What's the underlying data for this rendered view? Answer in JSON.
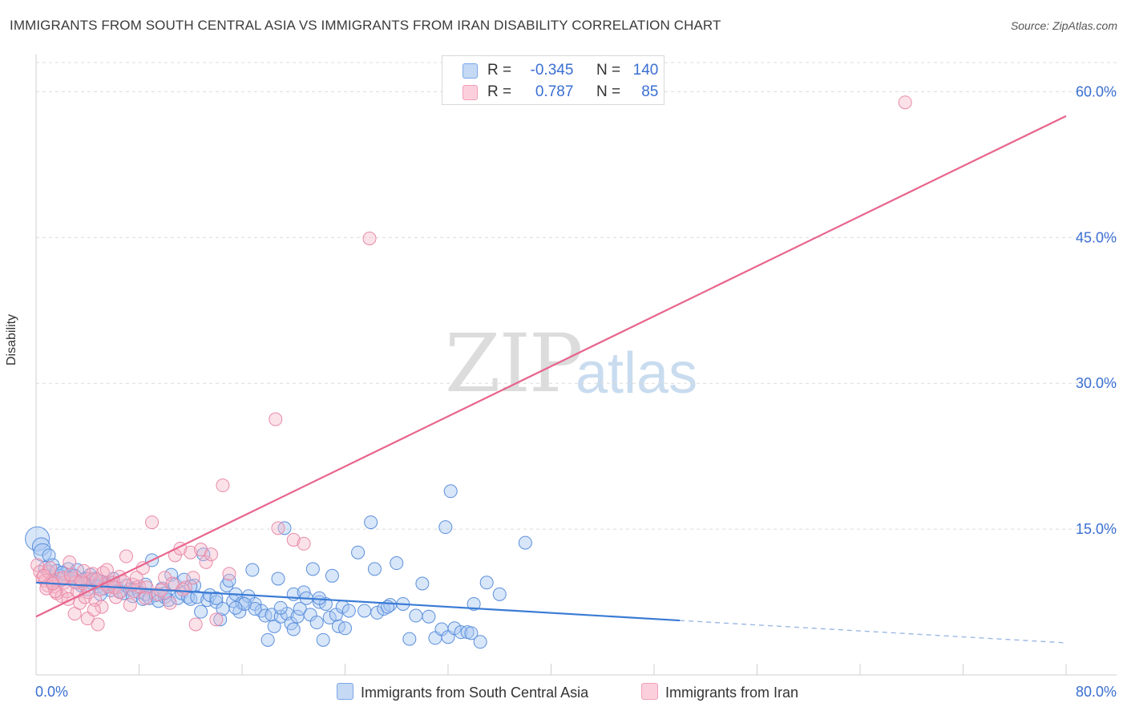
{
  "header": {
    "title": "IMMIGRANTS FROM SOUTH CENTRAL ASIA VS IMMIGRANTS FROM IRAN DISABILITY CORRELATION CHART",
    "source": "Source: ZipAtlas.com"
  },
  "watermark": {
    "zip": "ZIP",
    "atlas": "atlas"
  },
  "stats": {
    "rows": [
      {
        "r_label": "R =",
        "r_value": "-0.345",
        "n_label": "N =",
        "n_value": "140",
        "color": "#7aa7e8"
      },
      {
        "r_label": "R =",
        "r_value": "0.787",
        "n_label": "N =",
        "n_value": "85",
        "color": "#f0a0b8"
      }
    ]
  },
  "legend": {
    "items": [
      {
        "label": "Immigrants from South Central Asia",
        "color": "#7aa7e8"
      },
      {
        "label": "Immigrants from Iran",
        "color": "#f0a0b8"
      }
    ]
  },
  "colors": {
    "blue": "#3a7bd5",
    "blue_fill": "#a9c8f2",
    "pink": "#e8648c",
    "pink_fill": "#f6b7c9",
    "tick_label": "#3a6fd2"
  },
  "chart_data": {
    "type": "scatter",
    "title": "IMMIGRANTS FROM SOUTH CENTRAL ASIA VS IMMIGRANTS FROM IRAN DISABILITY CORRELATION CHART",
    "xlabel": "",
    "ylabel": "Disability",
    "xlim": [
      0,
      80
    ],
    "ylim": [
      0,
      63
    ],
    "x_tick_labels": [
      "0.0%",
      "80.0%"
    ],
    "y_ticks": [
      15,
      30,
      45,
      60
    ],
    "y_tick_labels": [
      "15.0%",
      "30.0%",
      "45.0%",
      "60.0%"
    ],
    "series": [
      {
        "name": "Immigrants from South Central Asia",
        "color": "#3a7bd5",
        "trend": {
          "x0": 0,
          "y0": 9.5,
          "x1": 50,
          "y1": 5.6,
          "dash_x1": 80,
          "dash_y1": 3.3
        },
        "points": [
          [
            0.1,
            14.0
          ],
          [
            0.4,
            13.2
          ],
          [
            0.5,
            12.6
          ],
          [
            0.7,
            11.0
          ],
          [
            1.0,
            12.3
          ],
          [
            1.3,
            11.3
          ],
          [
            1.6,
            10.7
          ],
          [
            1.9,
            10.2
          ],
          [
            2.0,
            9.8
          ],
          [
            2.2,
            10.4
          ],
          [
            2.5,
            10.9
          ],
          [
            2.8,
            10.1
          ],
          [
            3.0,
            9.6
          ],
          [
            3.2,
            10.8
          ],
          [
            3.5,
            9.2
          ],
          [
            3.8,
            9.9
          ],
          [
            4.0,
            8.8
          ],
          [
            4.2,
            10.3
          ],
          [
            4.4,
            9.4
          ],
          [
            4.6,
            9.9
          ],
          [
            4.8,
            9.1
          ],
          [
            5.0,
            9.6
          ],
          [
            5.3,
            8.9
          ],
          [
            5.5,
            9.3
          ],
          [
            5.8,
            8.7
          ],
          [
            6.0,
            9.5
          ],
          [
            6.3,
            9.0
          ],
          [
            6.5,
            8.6
          ],
          [
            6.8,
            8.4
          ],
          [
            7.0,
            9.2
          ],
          [
            7.3,
            8.8
          ],
          [
            7.5,
            8.1
          ],
          [
            7.8,
            9.0
          ],
          [
            8.0,
            8.5
          ],
          [
            8.3,
            7.8
          ],
          [
            8.5,
            8.3
          ],
          [
            8.8,
            7.9
          ],
          [
            9.0,
            11.8
          ],
          [
            9.3,
            8.2
          ],
          [
            9.5,
            7.6
          ],
          [
            9.8,
            8.9
          ],
          [
            10.0,
            8.0
          ],
          [
            10.3,
            7.7
          ],
          [
            10.5,
            10.3
          ],
          [
            10.8,
            9.3
          ],
          [
            11.0,
            7.9
          ],
          [
            11.3,
            8.4
          ],
          [
            11.5,
            9.8
          ],
          [
            11.8,
            8.0
          ],
          [
            12.0,
            7.8
          ],
          [
            12.3,
            9.2
          ],
          [
            12.5,
            8.0
          ],
          [
            12.8,
            6.5
          ],
          [
            13.0,
            12.4
          ],
          [
            13.3,
            7.7
          ],
          [
            13.5,
            8.2
          ],
          [
            14.0,
            7.5
          ],
          [
            14.3,
            5.7
          ],
          [
            14.5,
            6.8
          ],
          [
            14.8,
            9.2
          ],
          [
            15.0,
            9.7
          ],
          [
            15.3,
            7.6
          ],
          [
            15.5,
            8.3
          ],
          [
            15.8,
            6.5
          ],
          [
            16.0,
            7.4
          ],
          [
            16.5,
            8.1
          ],
          [
            16.8,
            10.8
          ],
          [
            17.0,
            7.3
          ],
          [
            17.5,
            6.6
          ],
          [
            17.8,
            6.1
          ],
          [
            18.0,
            3.6
          ],
          [
            18.3,
            6.2
          ],
          [
            18.5,
            5.0
          ],
          [
            18.8,
            9.9
          ],
          [
            19.0,
            6.0
          ],
          [
            19.3,
            15.1
          ],
          [
            19.5,
            6.3
          ],
          [
            19.8,
            5.3
          ],
          [
            20.0,
            8.3
          ],
          [
            20.3,
            6.0
          ],
          [
            20.5,
            6.8
          ],
          [
            20.8,
            8.5
          ],
          [
            21.0,
            7.9
          ],
          [
            21.3,
            6.2
          ],
          [
            21.5,
            10.9
          ],
          [
            21.8,
            5.4
          ],
          [
            22.0,
            7.5
          ],
          [
            22.3,
            3.6
          ],
          [
            22.5,
            7.3
          ],
          [
            22.8,
            5.9
          ],
          [
            23.0,
            10.2
          ],
          [
            23.3,
            6.2
          ],
          [
            23.5,
            5.0
          ],
          [
            23.8,
            7.0
          ],
          [
            24.0,
            4.8
          ],
          [
            25.0,
            12.6
          ],
          [
            25.5,
            6.6
          ],
          [
            26.0,
            15.7
          ],
          [
            26.3,
            10.9
          ],
          [
            26.5,
            6.4
          ],
          [
            27.0,
            6.8
          ],
          [
            27.5,
            7.2
          ],
          [
            28.0,
            11.5
          ],
          [
            28.5,
            7.3
          ],
          [
            29.0,
            3.7
          ],
          [
            29.5,
            6.1
          ],
          [
            30.0,
            9.4
          ],
          [
            31.0,
            3.8
          ],
          [
            31.5,
            4.7
          ],
          [
            31.8,
            15.2
          ],
          [
            32.0,
            3.9
          ],
          [
            32.2,
            18.9
          ],
          [
            32.5,
            4.8
          ],
          [
            33.0,
            4.4
          ],
          [
            33.5,
            4.4
          ],
          [
            33.8,
            4.3
          ],
          [
            34.0,
            7.3
          ],
          [
            34.5,
            3.4
          ],
          [
            35.0,
            9.5
          ],
          [
            36.0,
            8.3
          ],
          [
            38.0,
            13.6
          ],
          [
            30.5,
            6.0
          ],
          [
            27.3,
            7.0
          ],
          [
            24.3,
            6.6
          ],
          [
            22.0,
            7.9
          ],
          [
            20.0,
            4.7
          ],
          [
            19.0,
            6.9
          ],
          [
            17.0,
            6.8
          ],
          [
            16.2,
            7.3
          ],
          [
            15.5,
            6.9
          ],
          [
            14.0,
            7.9
          ],
          [
            12.0,
            9.1
          ],
          [
            10.0,
            8.4
          ],
          [
            8.5,
            9.3
          ],
          [
            6.0,
            9.9
          ],
          [
            5.0,
            8.3
          ],
          [
            4.0,
            9.9
          ],
          [
            3.0,
            10.2
          ],
          [
            2.0,
            10.5
          ],
          [
            1.5,
            9.6
          ]
        ]
      },
      {
        "name": "Immigrants from Iran",
        "color": "#e8648c",
        "trend": {
          "x0": 0,
          "y0": 6.0,
          "x1": 80,
          "y1": 57.5
        },
        "points": [
          [
            0.1,
            11.3
          ],
          [
            0.3,
            10.6
          ],
          [
            0.5,
            10.0
          ],
          [
            0.7,
            9.7
          ],
          [
            0.9,
            9.2
          ],
          [
            1.0,
            10.6
          ],
          [
            1.2,
            9.6
          ],
          [
            1.4,
            9.1
          ],
          [
            1.6,
            8.4
          ],
          [
            1.8,
            9.9
          ],
          [
            2.0,
            8.1
          ],
          [
            2.2,
            9.5
          ],
          [
            2.4,
            8.6
          ],
          [
            2.6,
            11.6
          ],
          [
            2.8,
            9.9
          ],
          [
            3.0,
            6.3
          ],
          [
            3.2,
            8.6
          ],
          [
            3.4,
            7.4
          ],
          [
            3.6,
            9.4
          ],
          [
            3.8,
            8.0
          ],
          [
            4.0,
            5.8
          ],
          [
            4.2,
            9.9
          ],
          [
            4.4,
            10.4
          ],
          [
            4.6,
            7.7
          ],
          [
            4.8,
            5.2
          ],
          [
            5.0,
            8.8
          ],
          [
            5.2,
            10.5
          ],
          [
            5.4,
            9.4
          ],
          [
            5.6,
            9.1
          ],
          [
            6.0,
            9.5
          ],
          [
            6.2,
            8.0
          ],
          [
            6.5,
            10.1
          ],
          [
            6.8,
            9.6
          ],
          [
            7.0,
            12.2
          ],
          [
            7.3,
            7.2
          ],
          [
            7.6,
            8.6
          ],
          [
            8.0,
            9.1
          ],
          [
            8.3,
            11.0
          ],
          [
            8.6,
            9.0
          ],
          [
            9.0,
            15.7
          ],
          [
            9.5,
            8.3
          ],
          [
            10.0,
            10.0
          ],
          [
            10.4,
            7.4
          ],
          [
            10.8,
            12.3
          ],
          [
            11.2,
            13.0
          ],
          [
            11.6,
            9.0
          ],
          [
            12.0,
            12.6
          ],
          [
            12.4,
            5.2
          ],
          [
            12.8,
            12.9
          ],
          [
            13.2,
            11.6
          ],
          [
            13.6,
            12.4
          ],
          [
            14.0,
            5.7
          ],
          [
            14.5,
            19.5
          ],
          [
            15.0,
            10.4
          ],
          [
            18.6,
            26.3
          ],
          [
            18.8,
            15.1
          ],
          [
            20.0,
            13.9
          ],
          [
            20.8,
            13.5
          ],
          [
            25.9,
            44.9
          ],
          [
            67.5,
            58.9
          ],
          [
            1.1,
            11.0
          ],
          [
            2.1,
            10.0
          ],
          [
            3.1,
            9.5
          ],
          [
            4.1,
            8.5
          ],
          [
            5.1,
            7.0
          ],
          [
            6.1,
            9.0
          ],
          [
            0.6,
            10.2
          ],
          [
            1.5,
            8.6
          ],
          [
            2.5,
            7.8
          ],
          [
            3.5,
            9.7
          ],
          [
            4.5,
            6.7
          ],
          [
            5.5,
            10.8
          ],
          [
            6.5,
            8.5
          ],
          [
            7.5,
            9.3
          ],
          [
            8.5,
            7.9
          ],
          [
            9.7,
            8.7
          ],
          [
            10.6,
            9.4
          ],
          [
            11.4,
            8.8
          ],
          [
            12.2,
            10.0
          ],
          [
            0.8,
            8.9
          ],
          [
            1.3,
            9.4
          ],
          [
            2.7,
            10.3
          ],
          [
            3.7,
            10.7
          ],
          [
            4.7,
            9.8
          ],
          [
            7.8,
            10.0
          ]
        ]
      }
    ]
  }
}
